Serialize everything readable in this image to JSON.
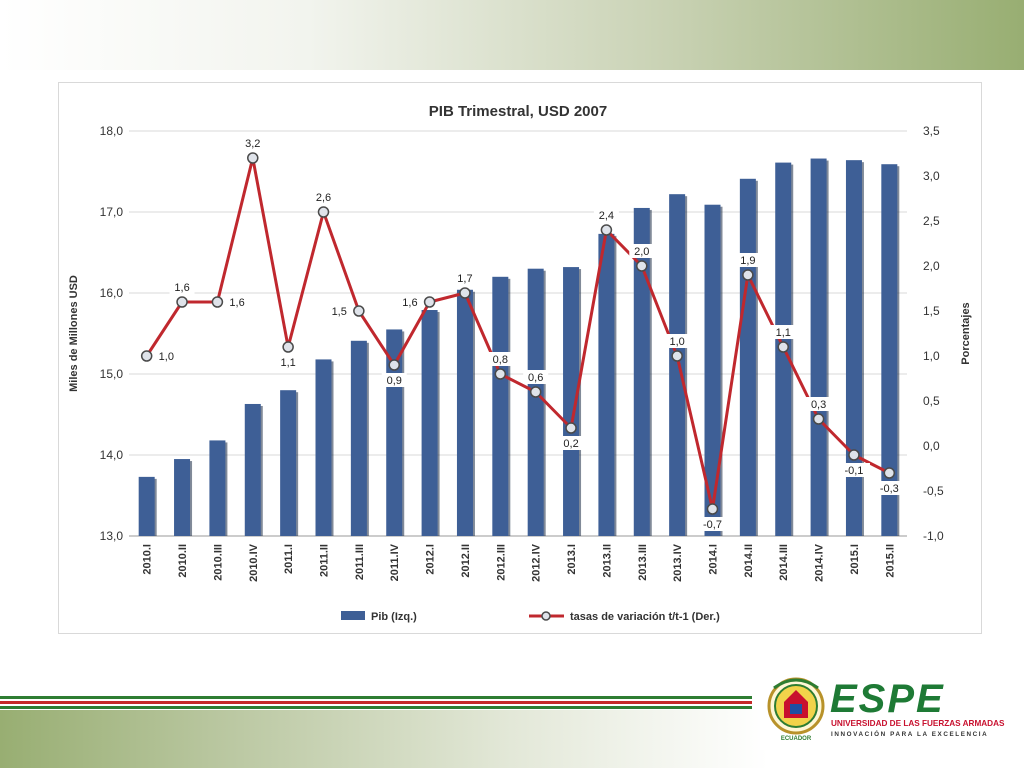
{
  "chart_data": {
    "type": "bar",
    "title": "PIB Trimestral, USD 2007",
    "categories": [
      "2010.I",
      "2010.II",
      "2010.III",
      "2010.IV",
      "2011.I",
      "2011.II",
      "2011.III",
      "2011.IV",
      "2012.I",
      "2012.II",
      "2012.III",
      "2012.IV",
      "2013.I",
      "2013.II",
      "2013.III",
      "2013.IV",
      "2014.I",
      "2014.II",
      "2014.III",
      "2014.IV",
      "2015.I",
      "2015.II"
    ],
    "ylabel": "Miles de Millones USD",
    "y2label": "Porcentajes",
    "ylim": [
      13.0,
      18.0
    ],
    "y2lim": [
      -1.0,
      3.5
    ],
    "yticks": [
      "13,0",
      "14,0",
      "15,0",
      "16,0",
      "17,0",
      "18,0"
    ],
    "y2ticks": [
      "-1,0",
      "-0,5",
      "0,0",
      "0,5",
      "1,0",
      "1,5",
      "2,0",
      "2,5",
      "3,0",
      "3,5"
    ],
    "grid": true,
    "legend_placement": "bottom",
    "series": [
      {
        "name": "Pib (Izq.)",
        "type": "bar",
        "axis": "left",
        "color": "#3e5f96",
        "values": [
          13.73,
          13.95,
          14.18,
          14.63,
          14.8,
          15.18,
          15.41,
          15.55,
          15.79,
          16.04,
          16.2,
          16.3,
          16.32,
          16.73,
          17.05,
          17.22,
          17.09,
          17.41,
          17.61,
          17.66,
          17.64,
          17.59
        ]
      },
      {
        "name": "tasas de variación t/t-1 (Der.)",
        "type": "line",
        "axis": "right",
        "color": "#c0282e",
        "values": [
          1.0,
          1.6,
          1.6,
          3.2,
          1.1,
          2.6,
          1.5,
          0.9,
          1.6,
          1.7,
          0.8,
          0.6,
          0.2,
          2.4,
          2.0,
          1.0,
          -0.7,
          1.9,
          1.1,
          0.3,
          -0.1,
          -0.3
        ],
        "labels": [
          "1,0",
          "1,6",
          "1,6",
          "3,2",
          "1,1",
          "2,6",
          "1,5",
          "0,9",
          "1,6",
          "1,7",
          "0,8",
          "0,6",
          "0,2",
          "2,4",
          "2,0",
          "1,0",
          "-0,7",
          "1,9",
          "1,1",
          "0,3",
          "-0,1",
          "-0,3"
        ],
        "label_pos": [
          "right",
          "up",
          "right",
          "up",
          "down",
          "up",
          "left",
          "down",
          "left",
          "up",
          "up",
          "up",
          "down",
          "up",
          "up",
          "up",
          "down",
          "up",
          "up",
          "up",
          "down",
          "down"
        ]
      }
    ]
  },
  "brand": {
    "name": "ESPE",
    "university": "UNIVERSIDAD DE LAS FUERZAS ARMADAS",
    "tagline": "INNOVACIÓN  PARA  LA  EXCELENCIA",
    "seal_text": "ECUADOR",
    "green": "#1e7a35",
    "red": "#c8102e"
  }
}
